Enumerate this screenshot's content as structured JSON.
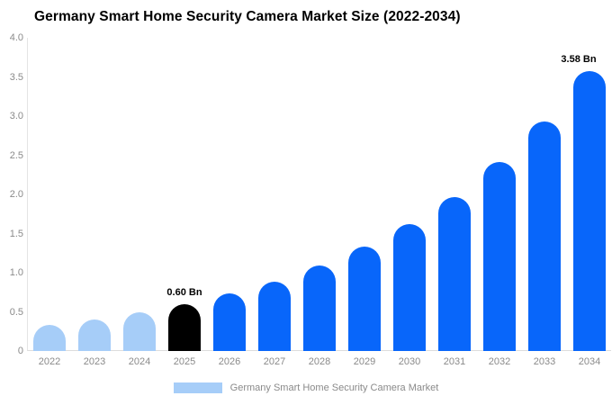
{
  "header": {
    "title": "Germany Smart Home Security Camera Market Size (2022-2034)"
  },
  "chart_data": {
    "type": "bar",
    "title": "Germany Smart Home Security Camera Market Size (2022-2034)",
    "categories": [
      "2022",
      "2023",
      "2024",
      "2025",
      "2026",
      "2027",
      "2028",
      "2029",
      "2030",
      "2031",
      "2032",
      "2033",
      "2034"
    ],
    "values": [
      0.33,
      0.4,
      0.49,
      0.6,
      0.73,
      0.89,
      1.09,
      1.33,
      1.62,
      1.97,
      2.41,
      2.93,
      3.58
    ],
    "unit": "Bn",
    "xlabel": "",
    "ylabel": "",
    "ylim": [
      0,
      4.0
    ],
    "yticks": [
      "4.0",
      "3.5",
      "3.0",
      "2.5",
      "2.0",
      "1.5",
      "1.0",
      "0.5",
      "0"
    ],
    "grid": false,
    "bar_colors": [
      "#a6cdf8",
      "#a6cdf8",
      "#a6cdf8",
      "#000000",
      "#0866fa",
      "#0866fa",
      "#0866fa",
      "#0866fa",
      "#0866fa",
      "#0866fa",
      "#0866fa",
      "#0866fa",
      "#0866fa"
    ],
    "annotations": [
      {
        "index": 3,
        "text": "0.60 Bn"
      },
      {
        "index": 12,
        "text": "3.58 Bn"
      }
    ],
    "legend_position": "bottom-center",
    "legend": {
      "label": "Germany Smart Home Security Camera Market",
      "swatch_color": "#a6cdf8"
    },
    "colors": {
      "historical": "#a6cdf8",
      "highlight": "#000000",
      "forecast": "#0866fa"
    }
  }
}
